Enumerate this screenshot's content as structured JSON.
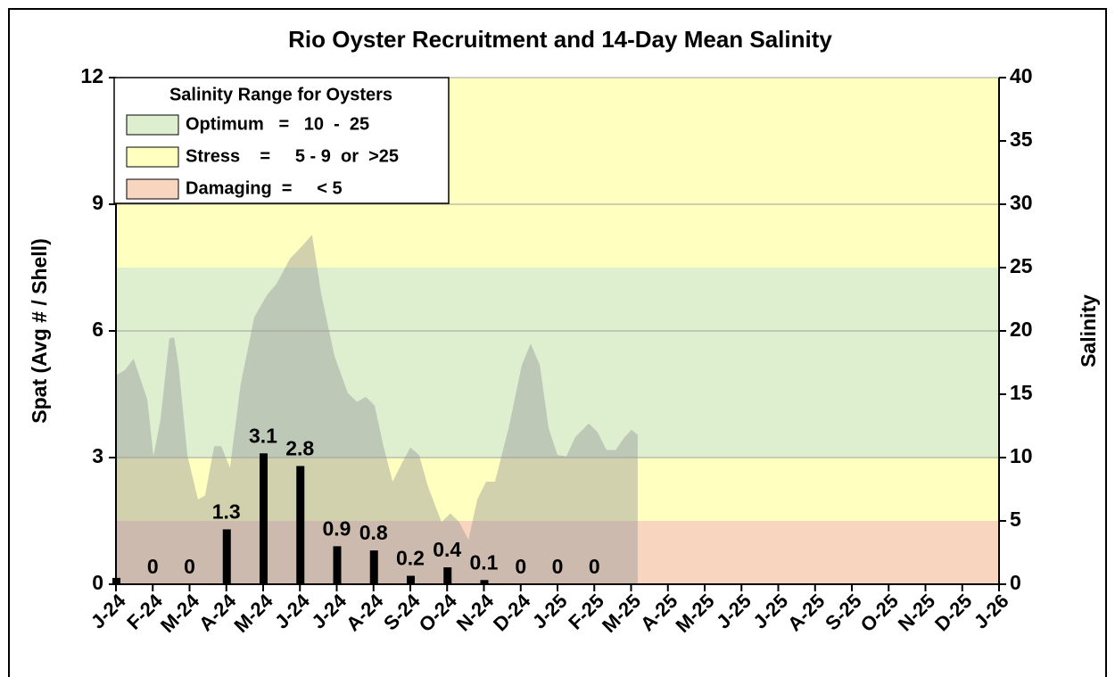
{
  "chart_data": {
    "type": "bar",
    "title": "Rio Oyster Recruitment and 14-Day Mean Salinity",
    "y_label": "Spat (Avg # / Shell)",
    "y2_label": "Salinity",
    "categories": [
      "J-24",
      "F-24",
      "M-24",
      "A-24",
      "M-24",
      "J-24",
      "J-24",
      "A-24",
      "S-24",
      "O-24",
      "N-24",
      "D-24",
      "J-25",
      "F-25",
      "M-25",
      "A-25",
      "M-25",
      "J-25",
      "J-25",
      "A-25",
      "S-25",
      "O-25",
      "N-25",
      "D-25",
      "J-26"
    ],
    "values": [
      0.15,
      0,
      0,
      1.3,
      3.1,
      2.8,
      0.9,
      0.8,
      0.2,
      0.4,
      0.1,
      0,
      0,
      0,
      null,
      null,
      null,
      null,
      null,
      null,
      null,
      null,
      null,
      null,
      null
    ],
    "value_labels": [
      null,
      "0",
      "0",
      "1.3",
      "3.1",
      "2.8",
      "0.9",
      "0.8",
      "0.2",
      "0.4",
      "0.1",
      "0",
      "0",
      "0",
      null,
      null,
      null,
      null,
      null,
      null,
      null,
      null,
      null,
      null,
      null
    ],
    "color": "#000000",
    "ylim": [
      0,
      12
    ],
    "yticks": [
      0,
      3,
      6,
      9,
      12
    ],
    "y2lim": [
      0,
      40
    ],
    "y2ticks": [
      0,
      5,
      10,
      15,
      20,
      25,
      30,
      35,
      40
    ],
    "grid": true,
    "salinity": {
      "axis": "y2",
      "color": "#9a9a9a",
      "x": [
        0,
        0.24,
        0.48,
        0.85,
        1.02,
        1.21,
        1.45,
        1.58,
        1.7,
        1.94,
        2.23,
        2.42,
        2.67,
        2.86,
        3.1,
        3.39,
        3.76,
        4.12,
        4.36,
        4.73,
        5.09,
        5.33,
        5.58,
        5.94,
        6.3,
        6.55,
        6.79,
        7.03,
        7.27,
        7.52,
        7.76,
        8,
        8.24,
        8.48,
        8.85,
        9.09,
        9.33,
        9.58,
        9.82,
        10.06,
        10.3,
        10.67,
        11.03,
        11.27,
        11.52,
        11.76,
        12,
        12.24,
        12.48,
        12.85,
        13.09,
        13.33,
        13.58,
        13.82,
        14.01,
        14.18
      ],
      "values": [
        16.5,
        16.9,
        17.8,
        14.6,
        10.1,
        13,
        19.4,
        19.5,
        17.3,
        10.2,
        6.7,
        7,
        10.9,
        10.9,
        9.2,
        15.8,
        21.1,
        22.9,
        23.7,
        25.7,
        26.8,
        27.6,
        22.9,
        18,
        15.1,
        14.4,
        14.8,
        14.1,
        10.9,
        8.1,
        9.5,
        10.8,
        10.2,
        7.7,
        4.9,
        5.6,
        4.9,
        3.5,
        6.7,
        8.1,
        8.1,
        12.3,
        17.3,
        19,
        17.3,
        12.3,
        10.2,
        10.1,
        11.6,
        12.7,
        12,
        10.6,
        10.6,
        11.6,
        12.2,
        11.8
      ]
    },
    "legend": {
      "title": "Salinity Range for Oysters",
      "position": "top-left",
      "bands": [
        {
          "label": "Optimum   =   10  -  25",
          "color": "#ddefcf",
          "ranges": [
            [
              10,
              25
            ]
          ]
        },
        {
          "label": "Stress    =     5 - 9  or  >25",
          "color": "#ffffc0",
          "ranges": [
            [
              5,
              10
            ],
            [
              25,
              40
            ]
          ]
        },
        {
          "label": "Damaging  =     < 5",
          "color": "#f8d5bf",
          "ranges": [
            [
              0,
              5
            ]
          ]
        }
      ]
    }
  }
}
